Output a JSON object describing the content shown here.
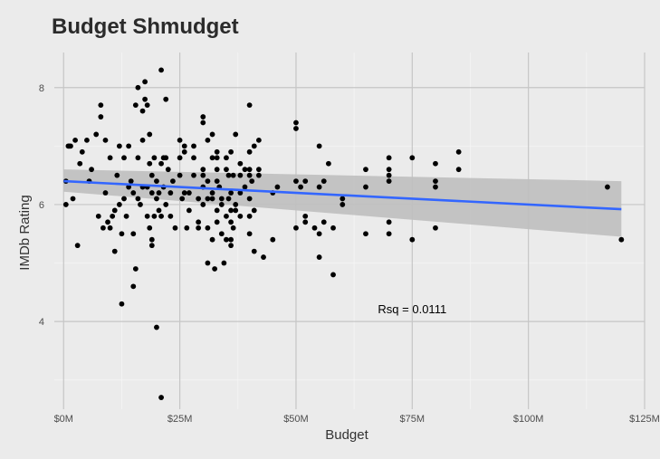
{
  "chart_data": {
    "type": "scatter",
    "title": "Budget Shmudget",
    "xlabel": "Budget",
    "ylabel": "IMDb Rating",
    "xlim": [
      -2,
      125
    ],
    "ylim": [
      2.5,
      8.6
    ],
    "x_ticks": [
      0,
      25,
      50,
      75,
      100,
      125
    ],
    "x_tick_labels": [
      "$0M",
      "$25M",
      "$50M",
      "$75M",
      "$100M",
      "$125M"
    ],
    "y_ticks": [
      4,
      6,
      8
    ],
    "y_tick_labels": [
      "4",
      "6",
      "8"
    ],
    "grid": true,
    "annotation": {
      "text": "Rsq = 0.0111",
      "x": 75,
      "y": 4.2
    },
    "regression": {
      "x": [
        0,
        120
      ],
      "y": [
        6.4,
        5.92
      ],
      "ci_lower": [
        6.22,
        5.45
      ],
      "ci_upper": [
        6.6,
        6.4
      ]
    },
    "colors": {
      "points": "#000000",
      "line": "#3366ff",
      "ribbon": "#bfbfbf"
    },
    "points": [
      [
        0.5,
        6.0
      ],
      [
        0.5,
        6.4
      ],
      [
        1,
        7.0
      ],
      [
        1.2,
        7.0
      ],
      [
        1.5,
        7.0
      ],
      [
        2,
        6.1
      ],
      [
        2.5,
        7.1
      ],
      [
        3,
        5.3
      ],
      [
        3.5,
        6.7
      ],
      [
        4,
        6.9
      ],
      [
        5,
        7.1
      ],
      [
        5.5,
        6.4
      ],
      [
        6,
        6.6
      ],
      [
        7,
        7.2
      ],
      [
        7.5,
        5.8
      ],
      [
        8,
        7.7
      ],
      [
        8,
        7.5
      ],
      [
        8.5,
        5.6
      ],
      [
        9,
        7.1
      ],
      [
        9,
        6.2
      ],
      [
        9.5,
        5.7
      ],
      [
        10,
        6.8
      ],
      [
        10,
        5.6
      ],
      [
        10.5,
        5.8
      ],
      [
        11,
        5.9
      ],
      [
        11,
        5.2
      ],
      [
        11.5,
        6.5
      ],
      [
        12,
        7.0
      ],
      [
        12,
        6.0
      ],
      [
        12.5,
        4.3
      ],
      [
        12.5,
        5.5
      ],
      [
        13,
        6.1
      ],
      [
        13,
        6.8
      ],
      [
        13.5,
        5.8
      ],
      [
        14,
        7.0
      ],
      [
        14,
        6.3
      ],
      [
        14.5,
        6.4
      ],
      [
        15,
        6.2
      ],
      [
        15,
        5.5
      ],
      [
        15.5,
        7.7
      ],
      [
        15,
        4.6
      ],
      [
        15.5,
        4.9
      ],
      [
        16,
        8.0
      ],
      [
        16,
        6.8
      ],
      [
        16,
        6.1
      ],
      [
        16.5,
        6.0
      ],
      [
        17,
        7.6
      ],
      [
        17,
        7.1
      ],
      [
        17,
        6.3
      ],
      [
        17.5,
        7.8
      ],
      [
        17.5,
        8.1
      ],
      [
        18,
        7.7
      ],
      [
        18,
        6.3
      ],
      [
        18,
        5.8
      ],
      [
        18.5,
        6.7
      ],
      [
        18.5,
        7.2
      ],
      [
        18.5,
        5.6
      ],
      [
        19,
        6.2
      ],
      [
        19,
        5.4
      ],
      [
        19,
        5.3
      ],
      [
        19.5,
        5.8
      ],
      [
        19.5,
        6.8
      ],
      [
        19,
        6.5
      ],
      [
        20,
        6.1
      ],
      [
        20,
        6.4
      ],
      [
        20,
        3.9
      ],
      [
        20.5,
        6.2
      ],
      [
        20.5,
        5.9
      ],
      [
        21,
        6.7
      ],
      [
        21,
        8.3
      ],
      [
        21,
        5.8
      ],
      [
        21.5,
        6.8
      ],
      [
        21.5,
        6.3
      ],
      [
        21,
        2.7
      ],
      [
        22,
        7.8
      ],
      [
        22,
        6.8
      ],
      [
        22,
        6.0
      ],
      [
        22.5,
        6.6
      ],
      [
        23,
        6.2
      ],
      [
        23,
        5.8
      ],
      [
        23.5,
        6.4
      ],
      [
        24,
        5.6
      ],
      [
        25,
        7.1
      ],
      [
        25,
        6.8
      ],
      [
        25,
        6.5
      ],
      [
        25.5,
        6.1
      ],
      [
        26,
        7.0
      ],
      [
        26,
        6.2
      ],
      [
        26.5,
        5.6
      ],
      [
        26,
        6.9
      ],
      [
        27,
        6.2
      ],
      [
        27,
        5.9
      ],
      [
        28,
        6.5
      ],
      [
        28,
        6.8
      ],
      [
        28,
        7.0
      ],
      [
        29,
        6.1
      ],
      [
        29,
        5.6
      ],
      [
        29,
        5.7
      ],
      [
        30,
        6.5
      ],
      [
        30,
        7.5
      ],
      [
        30,
        6.6
      ],
      [
        30,
        6.3
      ],
      [
        30,
        6.0
      ],
      [
        30,
        7.4
      ],
      [
        31,
        6.1
      ],
      [
        31,
        6.4
      ],
      [
        31,
        5.6
      ],
      [
        31,
        5.0
      ],
      [
        31,
        7.1
      ],
      [
        32,
        7.2
      ],
      [
        32,
        6.1
      ],
      [
        32,
        6.8
      ],
      [
        32,
        6.2
      ],
      [
        32,
        5.4
      ],
      [
        32.5,
        4.9
      ],
      [
        33,
        6.6
      ],
      [
        33,
        5.9
      ],
      [
        33,
        5.7
      ],
      [
        33,
        6.8
      ],
      [
        33,
        6.9
      ],
      [
        33,
        6.4
      ],
      [
        33.5,
        6.3
      ],
      [
        34,
        6.0
      ],
      [
        34,
        6.1
      ],
      [
        34,
        5.5
      ],
      [
        34.5,
        5.0
      ],
      [
        35,
        6.6
      ],
      [
        35,
        5.8
      ],
      [
        35,
        5.4
      ],
      [
        35,
        6.8
      ],
      [
        35.5,
        6.1
      ],
      [
        35.5,
        6.5
      ],
      [
        36,
        5.3
      ],
      [
        36,
        6.2
      ],
      [
        36,
        5.7
      ],
      [
        36,
        5.9
      ],
      [
        36,
        6.9
      ],
      [
        36,
        5.4
      ],
      [
        36.5,
        6.5
      ],
      [
        36.5,
        5.6
      ],
      [
        37,
        7.2
      ],
      [
        37,
        6.0
      ],
      [
        37,
        5.9
      ],
      [
        38,
        6.2
      ],
      [
        38,
        6.5
      ],
      [
        38,
        5.8
      ],
      [
        38,
        6.7
      ],
      [
        39,
        6.6
      ],
      [
        39,
        6.3
      ],
      [
        40,
        6.9
      ],
      [
        40,
        5.8
      ],
      [
        40,
        6.1
      ],
      [
        40,
        5.5
      ],
      [
        40,
        7.7
      ],
      [
        40,
        6.5
      ],
      [
        40,
        6.6
      ],
      [
        40.5,
        6.4
      ],
      [
        41,
        5.9
      ],
      [
        41,
        5.2
      ],
      [
        41,
        7.0
      ],
      [
        42,
        6.6
      ],
      [
        42,
        7.1
      ],
      [
        42,
        6.5
      ],
      [
        43,
        5.1
      ],
      [
        45,
        6.2
      ],
      [
        45,
        5.4
      ],
      [
        46,
        6.3
      ],
      [
        50,
        7.4
      ],
      [
        50,
        7.3
      ],
      [
        50,
        6.4
      ],
      [
        50,
        5.6
      ],
      [
        51,
        6.3
      ],
      [
        52,
        5.8
      ],
      [
        52,
        6.4
      ],
      [
        52,
        5.7
      ],
      [
        54,
        5.6
      ],
      [
        55,
        6.3
      ],
      [
        55,
        5.5
      ],
      [
        55,
        5.1
      ],
      [
        55,
        7.0
      ],
      [
        56,
        6.4
      ],
      [
        56,
        5.7
      ],
      [
        57,
        6.7
      ],
      [
        58,
        5.6
      ],
      [
        58,
        4.8
      ],
      [
        60,
        6.0
      ],
      [
        60,
        6.1
      ],
      [
        65,
        6.3
      ],
      [
        65,
        6.6
      ],
      [
        65,
        5.5
      ],
      [
        70,
        6.5
      ],
      [
        70,
        6.8
      ],
      [
        70,
        6.6
      ],
      [
        70,
        6.4
      ],
      [
        70,
        5.7
      ],
      [
        70,
        5.5
      ],
      [
        75,
        6.8
      ],
      [
        75,
        5.4
      ],
      [
        80,
        6.7
      ],
      [
        80,
        6.4
      ],
      [
        80,
        6.3
      ],
      [
        80,
        5.6
      ],
      [
        85,
        6.9
      ],
      [
        85,
        6.6
      ],
      [
        117,
        6.3
      ],
      [
        120,
        5.4
      ]
    ]
  }
}
